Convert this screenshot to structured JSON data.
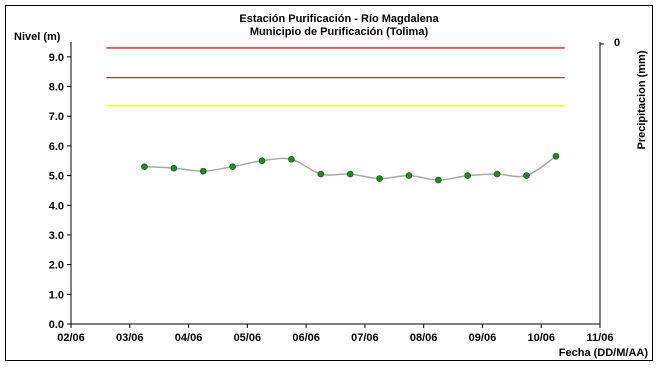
{
  "chart_data": {
    "type": "line",
    "title": "Estación Purificación - Río Magdalena",
    "subtitle": "Municipio de Purificación (Tolima)",
    "ylabel": "Nivel (m)",
    "y2label": "Precipitacion (mm)",
    "xlabel": "Fecha (DD/M/AA)",
    "x_ticks": [
      "02/06",
      "03/06",
      "04/06",
      "05/06",
      "06/06",
      "07/06",
      "08/06",
      "09/06",
      "10/06",
      "11/06"
    ],
    "y_ticks": [
      "0.0",
      "1.0",
      "2.0",
      "3.0",
      "4.0",
      "5.0",
      "6.0",
      "7.0",
      "8.0",
      "9.0"
    ],
    "y2_ticks": [
      "0"
    ],
    "ylim": [
      0,
      9.5
    ],
    "xlim": [
      0,
      9
    ],
    "grid": false,
    "series": [
      {
        "color": "#a8a8a8",
        "marker_color": "#1f8a1f",
        "x": [
          1.25,
          1.75,
          2.25,
          2.75,
          3.25,
          3.75,
          4.25,
          4.75,
          5.25,
          5.75,
          6.25,
          6.75,
          7.25,
          7.75,
          8.25
        ],
        "values": [
          5.3,
          5.25,
          5.15,
          5.3,
          5.5,
          5.55,
          5.05,
          5.05,
          4.9,
          5.0,
          4.85,
          5.0,
          5.05,
          5.0,
          5.65
        ]
      }
    ],
    "threshold_lines": [
      {
        "value": 9.3,
        "color": "#e8141c",
        "x_from": 0.6,
        "x_to": 8.4
      },
      {
        "value": 8.3,
        "color": "#8b4a2b",
        "x_from": 0.6,
        "x_to": 8.4
      },
      {
        "value": 7.35,
        "color": "#ffff00",
        "x_from": 0.6,
        "x_to": 8.4
      }
    ]
  }
}
